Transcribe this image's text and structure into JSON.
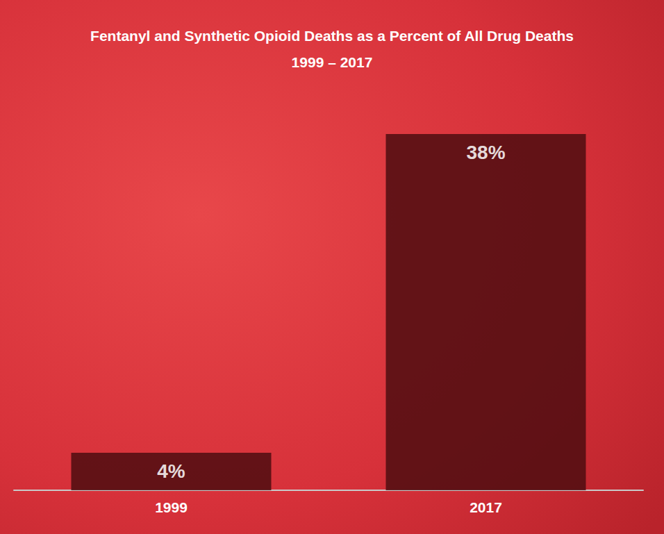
{
  "chart_data": {
    "type": "bar",
    "title": "Fentanyl and Synthetic Opioid Deaths as a Percent of All Drug Deaths",
    "subtitle": "1999 – 2017",
    "categories": [
      "1999",
      "2017"
    ],
    "values": [
      4,
      38
    ],
    "value_labels": [
      "4%",
      "38%"
    ],
    "data_labels": true,
    "color": "#4d0d10",
    "ylim": [
      0,
      40
    ],
    "tick_labels": "x",
    "grid": false
  }
}
